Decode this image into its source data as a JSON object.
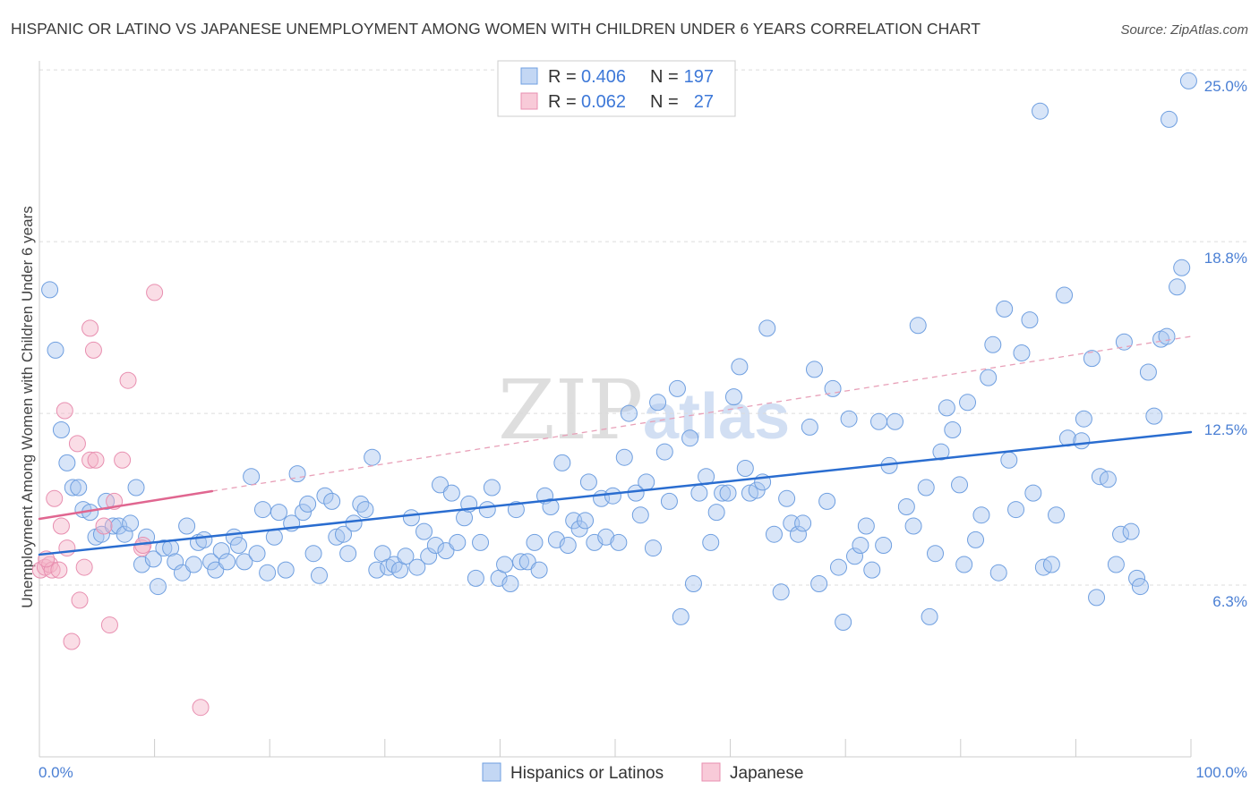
{
  "header": {
    "source": "Source: ZipAtlas.com"
  },
  "watermark": {
    "part1": "ZIP",
    "part2": "atlas"
  },
  "stats_legend": {
    "r_label": "R =",
    "n_label": "N =",
    "rows": [
      {
        "r": "0.406",
        "n": "197"
      },
      {
        "r": "0.062",
        "n": "27"
      }
    ]
  },
  "colors": {
    "blue_fill": "#a9c6f0",
    "blue_stroke": "#6f9fe0",
    "blue_trend": "#2a6dd0",
    "pink_fill": "#f5b3c8",
    "pink_stroke": "#e88fb0",
    "pink_trend": "#e06690",
    "pink_trend_dashed": "#e8a0b8",
    "grid": "#dcdcdc",
    "axis": "#cccccc"
  },
  "chart_data": {
    "type": "scatter",
    "title": "HISPANIC OR LATINO VS JAPANESE UNEMPLOYMENT AMONG WOMEN WITH CHILDREN UNDER 6 YEARS CORRELATION CHART",
    "ylabel": "Unemployment Among Women with Children Under 6 years",
    "xlim": [
      0,
      100
    ],
    "ylim": [
      0,
      25.33
    ],
    "x_tick_step": 10,
    "x_tick_labels": [
      {
        "value": 0,
        "label": "0.0%"
      },
      {
        "value": 100,
        "label": "100.0%"
      }
    ],
    "y_ticks": [
      {
        "value": 25,
        "label": "25.0%"
      },
      {
        "value": 18.75,
        "label": "18.8%"
      },
      {
        "value": 12.5,
        "label": "12.5%"
      },
      {
        "value": 6.25,
        "label": "6.3%"
      }
    ],
    "grid": true,
    "series": [
      {
        "name": "Hispanics or Latinos",
        "key": "hispanic",
        "fill": "#a9c6f0",
        "stroke": "#6f9fe0",
        "trend_color": "#2a6dd0",
        "trend_solid": [
          [
            0,
            7.36
          ],
          [
            100,
            11.82
          ]
        ],
        "points": [
          [
            0.9,
            17.0
          ],
          [
            1.4,
            14.8
          ],
          [
            1.9,
            11.9
          ],
          [
            2.4,
            10.7
          ],
          [
            2.9,
            9.8
          ],
          [
            3.4,
            9.8
          ],
          [
            3.8,
            9.0
          ],
          [
            4.4,
            8.9
          ],
          [
            4.9,
            8.0
          ],
          [
            5.4,
            8.1
          ],
          [
            5.8,
            9.3
          ],
          [
            6.4,
            8.4
          ],
          [
            6.9,
            8.4
          ],
          [
            7.4,
            8.1
          ],
          [
            7.9,
            8.5
          ],
          [
            8.4,
            9.8
          ],
          [
            8.9,
            7.0
          ],
          [
            9.3,
            8.0
          ],
          [
            9.9,
            7.2
          ],
          [
            10.3,
            6.2
          ],
          [
            10.8,
            7.6
          ],
          [
            11.4,
            7.6
          ],
          [
            11.8,
            7.1
          ],
          [
            12.4,
            6.7
          ],
          [
            12.8,
            8.4
          ],
          [
            13.4,
            7.0
          ],
          [
            13.8,
            7.8
          ],
          [
            14.3,
            7.9
          ],
          [
            14.9,
            7.1
          ],
          [
            15.3,
            6.8
          ],
          [
            15.8,
            7.5
          ],
          [
            16.3,
            7.1
          ],
          [
            16.9,
            8.0
          ],
          [
            17.3,
            7.7
          ],
          [
            17.8,
            7.1
          ],
          [
            18.4,
            10.2
          ],
          [
            18.9,
            7.4
          ],
          [
            19.4,
            9.0
          ],
          [
            19.8,
            6.7
          ],
          [
            20.4,
            8.0
          ],
          [
            20.8,
            8.9
          ],
          [
            21.4,
            6.8
          ],
          [
            21.9,
            8.5
          ],
          [
            22.4,
            10.3
          ],
          [
            22.9,
            8.9
          ],
          [
            23.3,
            9.2
          ],
          [
            23.8,
            7.4
          ],
          [
            24.3,
            6.6
          ],
          [
            24.8,
            9.5
          ],
          [
            25.4,
            9.3
          ],
          [
            25.8,
            8.0
          ],
          [
            26.4,
            8.1
          ],
          [
            26.8,
            7.4
          ],
          [
            27.3,
            8.5
          ],
          [
            27.9,
            9.2
          ],
          [
            28.3,
            9.0
          ],
          [
            28.9,
            10.9
          ],
          [
            29.3,
            6.8
          ],
          [
            29.8,
            7.4
          ],
          [
            30.3,
            6.9
          ],
          [
            30.8,
            7.0
          ],
          [
            31.3,
            6.8
          ],
          [
            31.8,
            7.3
          ],
          [
            32.3,
            8.7
          ],
          [
            32.8,
            6.9
          ],
          [
            33.4,
            8.2
          ],
          [
            33.8,
            7.3
          ],
          [
            34.4,
            7.7
          ],
          [
            34.8,
            9.9
          ],
          [
            35.3,
            7.5
          ],
          [
            35.8,
            9.6
          ],
          [
            36.3,
            7.8
          ],
          [
            36.9,
            8.7
          ],
          [
            37.3,
            9.2
          ],
          [
            37.9,
            6.5
          ],
          [
            38.3,
            7.8
          ],
          [
            38.9,
            9.0
          ],
          [
            39.3,
            9.8
          ],
          [
            39.9,
            6.5
          ],
          [
            40.4,
            7.0
          ],
          [
            40.9,
            6.3
          ],
          [
            41.4,
            9.0
          ],
          [
            41.8,
            7.1
          ],
          [
            42.4,
            7.1
          ],
          [
            43.0,
            7.8
          ],
          [
            43.4,
            6.8
          ],
          [
            43.9,
            9.5
          ],
          [
            44.4,
            9.1
          ],
          [
            44.9,
            7.9
          ],
          [
            45.4,
            10.7
          ],
          [
            45.9,
            7.7
          ],
          [
            46.4,
            8.6
          ],
          [
            46.9,
            8.3
          ],
          [
            47.4,
            8.6
          ],
          [
            47.7,
            10.0
          ],
          [
            48.2,
            7.8
          ],
          [
            48.8,
            9.4
          ],
          [
            49.2,
            8.0
          ],
          [
            49.8,
            9.5
          ],
          [
            50.3,
            7.8
          ],
          [
            50.8,
            10.9
          ],
          [
            51.2,
            12.5
          ],
          [
            51.8,
            9.6
          ],
          [
            52.2,
            8.8
          ],
          [
            52.7,
            10.0
          ],
          [
            53.3,
            7.6
          ],
          [
            53.7,
            12.9
          ],
          [
            54.3,
            11.1
          ],
          [
            54.7,
            9.3
          ],
          [
            55.4,
            13.4
          ],
          [
            55.7,
            5.1
          ],
          [
            56.5,
            11.6
          ],
          [
            56.8,
            6.3
          ],
          [
            57.3,
            9.6
          ],
          [
            57.9,
            10.2
          ],
          [
            58.3,
            7.8
          ],
          [
            58.8,
            8.9
          ],
          [
            59.3,
            9.6
          ],
          [
            59.8,
            9.6
          ],
          [
            60.3,
            13.1
          ],
          [
            60.8,
            14.2
          ],
          [
            61.3,
            10.5
          ],
          [
            61.7,
            9.6
          ],
          [
            62.3,
            9.7
          ],
          [
            62.8,
            10.0
          ],
          [
            63.2,
            15.6
          ],
          [
            63.8,
            8.1
          ],
          [
            64.4,
            6.0
          ],
          [
            64.9,
            9.4
          ],
          [
            65.3,
            8.5
          ],
          [
            65.9,
            8.1
          ],
          [
            66.3,
            8.5
          ],
          [
            66.9,
            12.0
          ],
          [
            67.3,
            14.1
          ],
          [
            67.7,
            6.3
          ],
          [
            68.4,
            9.3
          ],
          [
            68.9,
            13.4
          ],
          [
            69.4,
            6.9
          ],
          [
            69.8,
            4.9
          ],
          [
            70.3,
            12.3
          ],
          [
            70.8,
            7.3
          ],
          [
            71.3,
            7.7
          ],
          [
            71.8,
            8.4
          ],
          [
            72.3,
            6.8
          ],
          [
            72.9,
            12.2
          ],
          [
            73.3,
            7.7
          ],
          [
            73.8,
            10.6
          ],
          [
            74.3,
            12.2
          ],
          [
            75.3,
            9.1
          ],
          [
            75.9,
            8.4
          ],
          [
            76.3,
            15.7
          ],
          [
            77.0,
            9.8
          ],
          [
            77.3,
            5.1
          ],
          [
            77.8,
            7.4
          ],
          [
            78.3,
            11.1
          ],
          [
            78.8,
            12.7
          ],
          [
            79.3,
            11.9
          ],
          [
            79.9,
            9.9
          ],
          [
            80.3,
            7.0
          ],
          [
            80.6,
            12.9
          ],
          [
            81.3,
            7.9
          ],
          [
            81.8,
            8.8
          ],
          [
            82.4,
            13.8
          ],
          [
            82.8,
            15.0
          ],
          [
            83.3,
            6.7
          ],
          [
            83.8,
            16.3
          ],
          [
            84.2,
            10.8
          ],
          [
            84.8,
            9.0
          ],
          [
            85.3,
            14.7
          ],
          [
            86.0,
            15.9
          ],
          [
            86.3,
            9.6
          ],
          [
            86.9,
            23.5
          ],
          [
            87.2,
            6.9
          ],
          [
            87.9,
            7.0
          ],
          [
            88.3,
            8.8
          ],
          [
            89.0,
            16.8
          ],
          [
            89.3,
            11.6
          ],
          [
            90.5,
            11.5
          ],
          [
            90.7,
            12.3
          ],
          [
            91.4,
            14.5
          ],
          [
            91.8,
            5.8
          ],
          [
            92.1,
            10.2
          ],
          [
            92.8,
            10.1
          ],
          [
            93.5,
            7.0
          ],
          [
            93.9,
            8.1
          ],
          [
            94.2,
            15.1
          ],
          [
            94.8,
            8.2
          ],
          [
            95.3,
            6.5
          ],
          [
            95.6,
            6.2
          ],
          [
            96.3,
            14.0
          ],
          [
            96.8,
            12.4
          ],
          [
            97.4,
            15.2
          ],
          [
            97.9,
            15.3
          ],
          [
            98.1,
            23.2
          ],
          [
            98.8,
            17.1
          ],
          [
            99.2,
            17.8
          ],
          [
            99.8,
            24.6
          ]
        ]
      },
      {
        "name": "Japanese",
        "key": "japanese",
        "fill": "#f5b3c8",
        "stroke": "#e88fb0",
        "trend_color": "#e06690",
        "trend_dashed_color": "#e8a0b8",
        "trend_solid": [
          [
            0,
            8.66
          ],
          [
            15,
            9.67
          ]
        ],
        "trend_dashed": [
          [
            15,
            9.67
          ],
          [
            100,
            15.3
          ]
        ],
        "points": [
          [
            0.1,
            6.8
          ],
          [
            0.5,
            6.9
          ],
          [
            0.9,
            7.0
          ],
          [
            1.1,
            6.8
          ],
          [
            1.3,
            9.4
          ],
          [
            1.7,
            6.8
          ],
          [
            1.9,
            8.4
          ],
          [
            2.2,
            12.6
          ],
          [
            2.4,
            7.6
          ],
          [
            2.8,
            4.2
          ],
          [
            3.3,
            11.4
          ],
          [
            3.5,
            5.7
          ],
          [
            3.9,
            6.9
          ],
          [
            4.4,
            15.6
          ],
          [
            4.4,
            10.8
          ],
          [
            4.7,
            14.8
          ],
          [
            4.9,
            10.8
          ],
          [
            5.6,
            8.4
          ],
          [
            6.1,
            4.8
          ],
          [
            6.5,
            9.3
          ],
          [
            7.2,
            10.8
          ],
          [
            7.7,
            13.7
          ],
          [
            8.9,
            7.6
          ],
          [
            9.0,
            7.7
          ],
          [
            10.0,
            16.9
          ],
          [
            14.0,
            1.8
          ],
          [
            0.6,
            7.2
          ]
        ]
      }
    ]
  }
}
